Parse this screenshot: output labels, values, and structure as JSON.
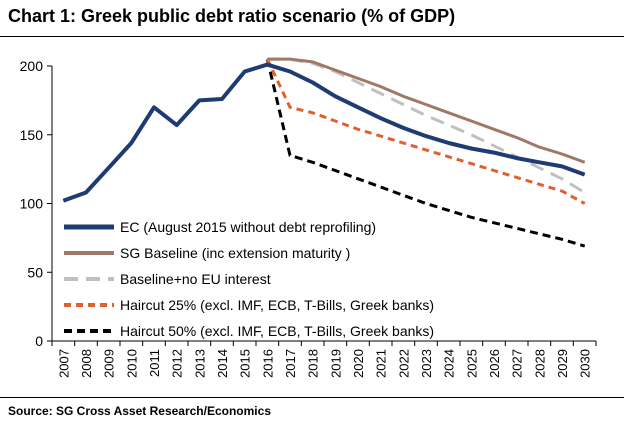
{
  "title": "Chart 1: Greek public debt ratio scenario (% of GDP)",
  "source": "Source: SG Cross Asset Research/Economics",
  "chart_data": {
    "type": "line",
    "title": "Chart 1: Greek public debt ratio scenario (% of GDP)",
    "xlabel": "",
    "ylabel": "",
    "ylim": [
      0,
      200
    ],
    "yticks": [
      0,
      50,
      100,
      150,
      200
    ],
    "x": [
      "2007",
      "2008",
      "2009",
      "2010",
      "2011",
      "2012",
      "2013",
      "2014",
      "2015",
      "2016",
      "2017",
      "2018",
      "2019",
      "2020",
      "2021",
      "2022",
      "2023",
      "2024",
      "2025",
      "2026",
      "2027",
      "2028",
      "2029",
      "2030"
    ],
    "grid": false,
    "legend_position": "bottom-left",
    "series": [
      {
        "name": "Haircut 50% (excl. IMF, ECB, T-Bills, Greek banks)",
        "color": "#000000",
        "dash": "8,5",
        "width": 3,
        "values": [
          null,
          null,
          null,
          null,
          null,
          null,
          null,
          null,
          null,
          205,
          135,
          130,
          124,
          118,
          112,
          106,
          100,
          95,
          90,
          86,
          82,
          78,
          74,
          69
        ]
      },
      {
        "name": "Haircut 25% (excl. IMF, ECB, T-Bills, Greek banks)",
        "color": "#e06030",
        "dash": "7,5",
        "width": 3,
        "values": [
          null,
          null,
          null,
          null,
          null,
          null,
          null,
          null,
          null,
          205,
          170,
          166,
          160,
          154,
          149,
          144,
          139,
          134,
          129,
          124,
          119,
          114,
          109,
          100
        ]
      },
      {
        "name": "Baseline+no EU interest",
        "color": "#c0c0c0",
        "dash": "14,8",
        "width": 3,
        "values": [
          null,
          null,
          null,
          null,
          null,
          null,
          null,
          null,
          null,
          205,
          205,
          202,
          196,
          188,
          180,
          172,
          164,
          157,
          150,
          142,
          134,
          126,
          118,
          108
        ]
      },
      {
        "name": "SG Baseline (inc extension maturity )",
        "color": "#a07868",
        "dash": "",
        "width": 3,
        "values": [
          null,
          null,
          null,
          null,
          null,
          null,
          null,
          null,
          null,
          205,
          205,
          203,
          197,
          191,
          185,
          178,
          172,
          166,
          160,
          154,
          148,
          141,
          136,
          130
        ]
      },
      {
        "name": "EC (August 2015 without debt reprofiling)",
        "color": "#1f3b73",
        "dash": "",
        "width": 4,
        "values": [
          102,
          108,
          126,
          144,
          170,
          157,
          175,
          176,
          196,
          201,
          196,
          188,
          178,
          170,
          162,
          155,
          149,
          144,
          140,
          137,
          133,
          130,
          127,
          121
        ]
      }
    ],
    "legend_order": [
      4,
      3,
      2,
      1,
      0
    ]
  }
}
